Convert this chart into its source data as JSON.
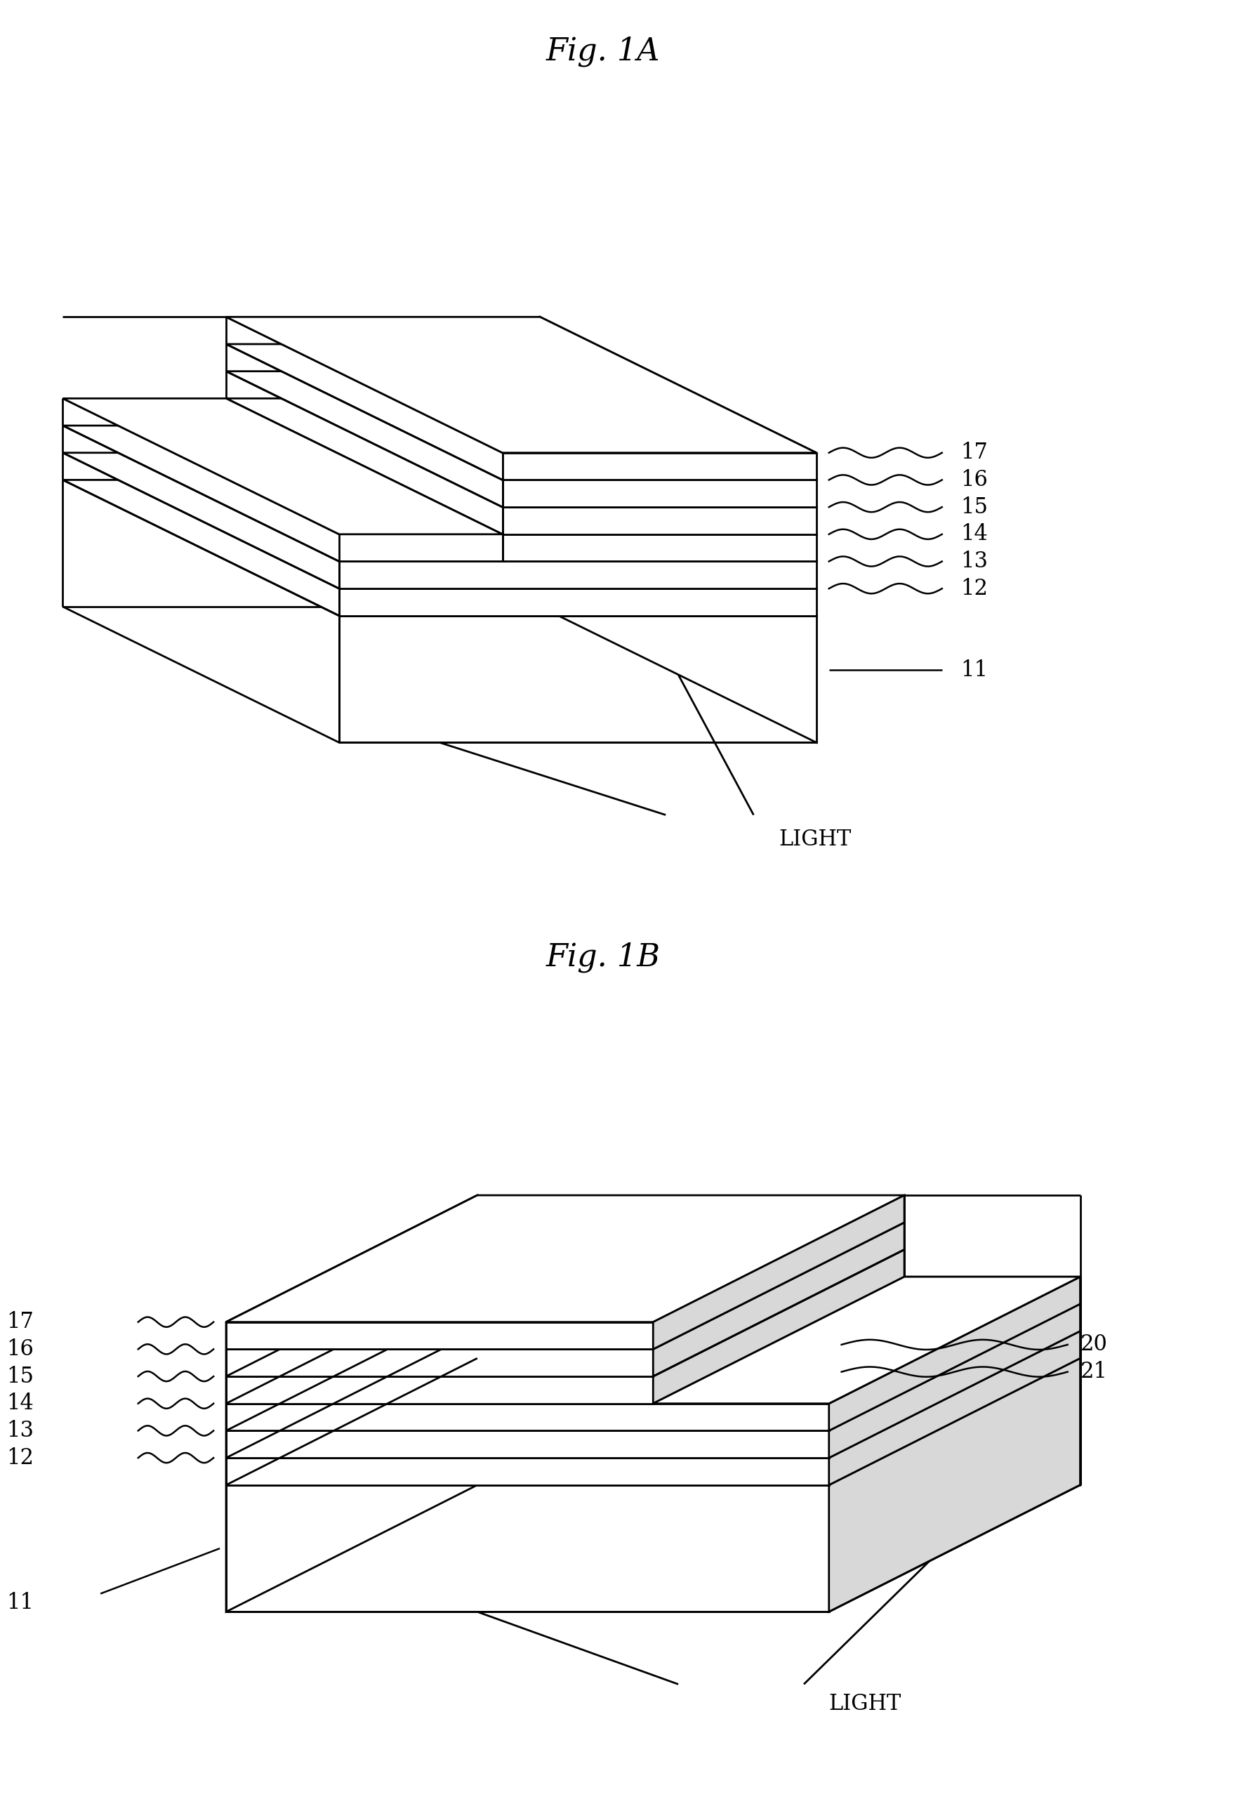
{
  "fig_title_A": "Fig. 1A",
  "fig_title_B": "Fig. 1B",
  "background_color": "#ffffff",
  "line_color": "#000000",
  "line_width": 2.0,
  "title_fontsize": 32,
  "label_fontsize": 22,
  "light_fontsize": 22,
  "labels_A_right": [
    "17",
    "16",
    "15",
    "14",
    "13",
    "12"
  ],
  "label_A_11": "11",
  "labels_B_left": [
    "17",
    "16",
    "15",
    "14",
    "13",
    "12"
  ],
  "label_B_11": "11",
  "labels_B_right": [
    "20",
    "21"
  ],
  "light_label": "LIGHT"
}
